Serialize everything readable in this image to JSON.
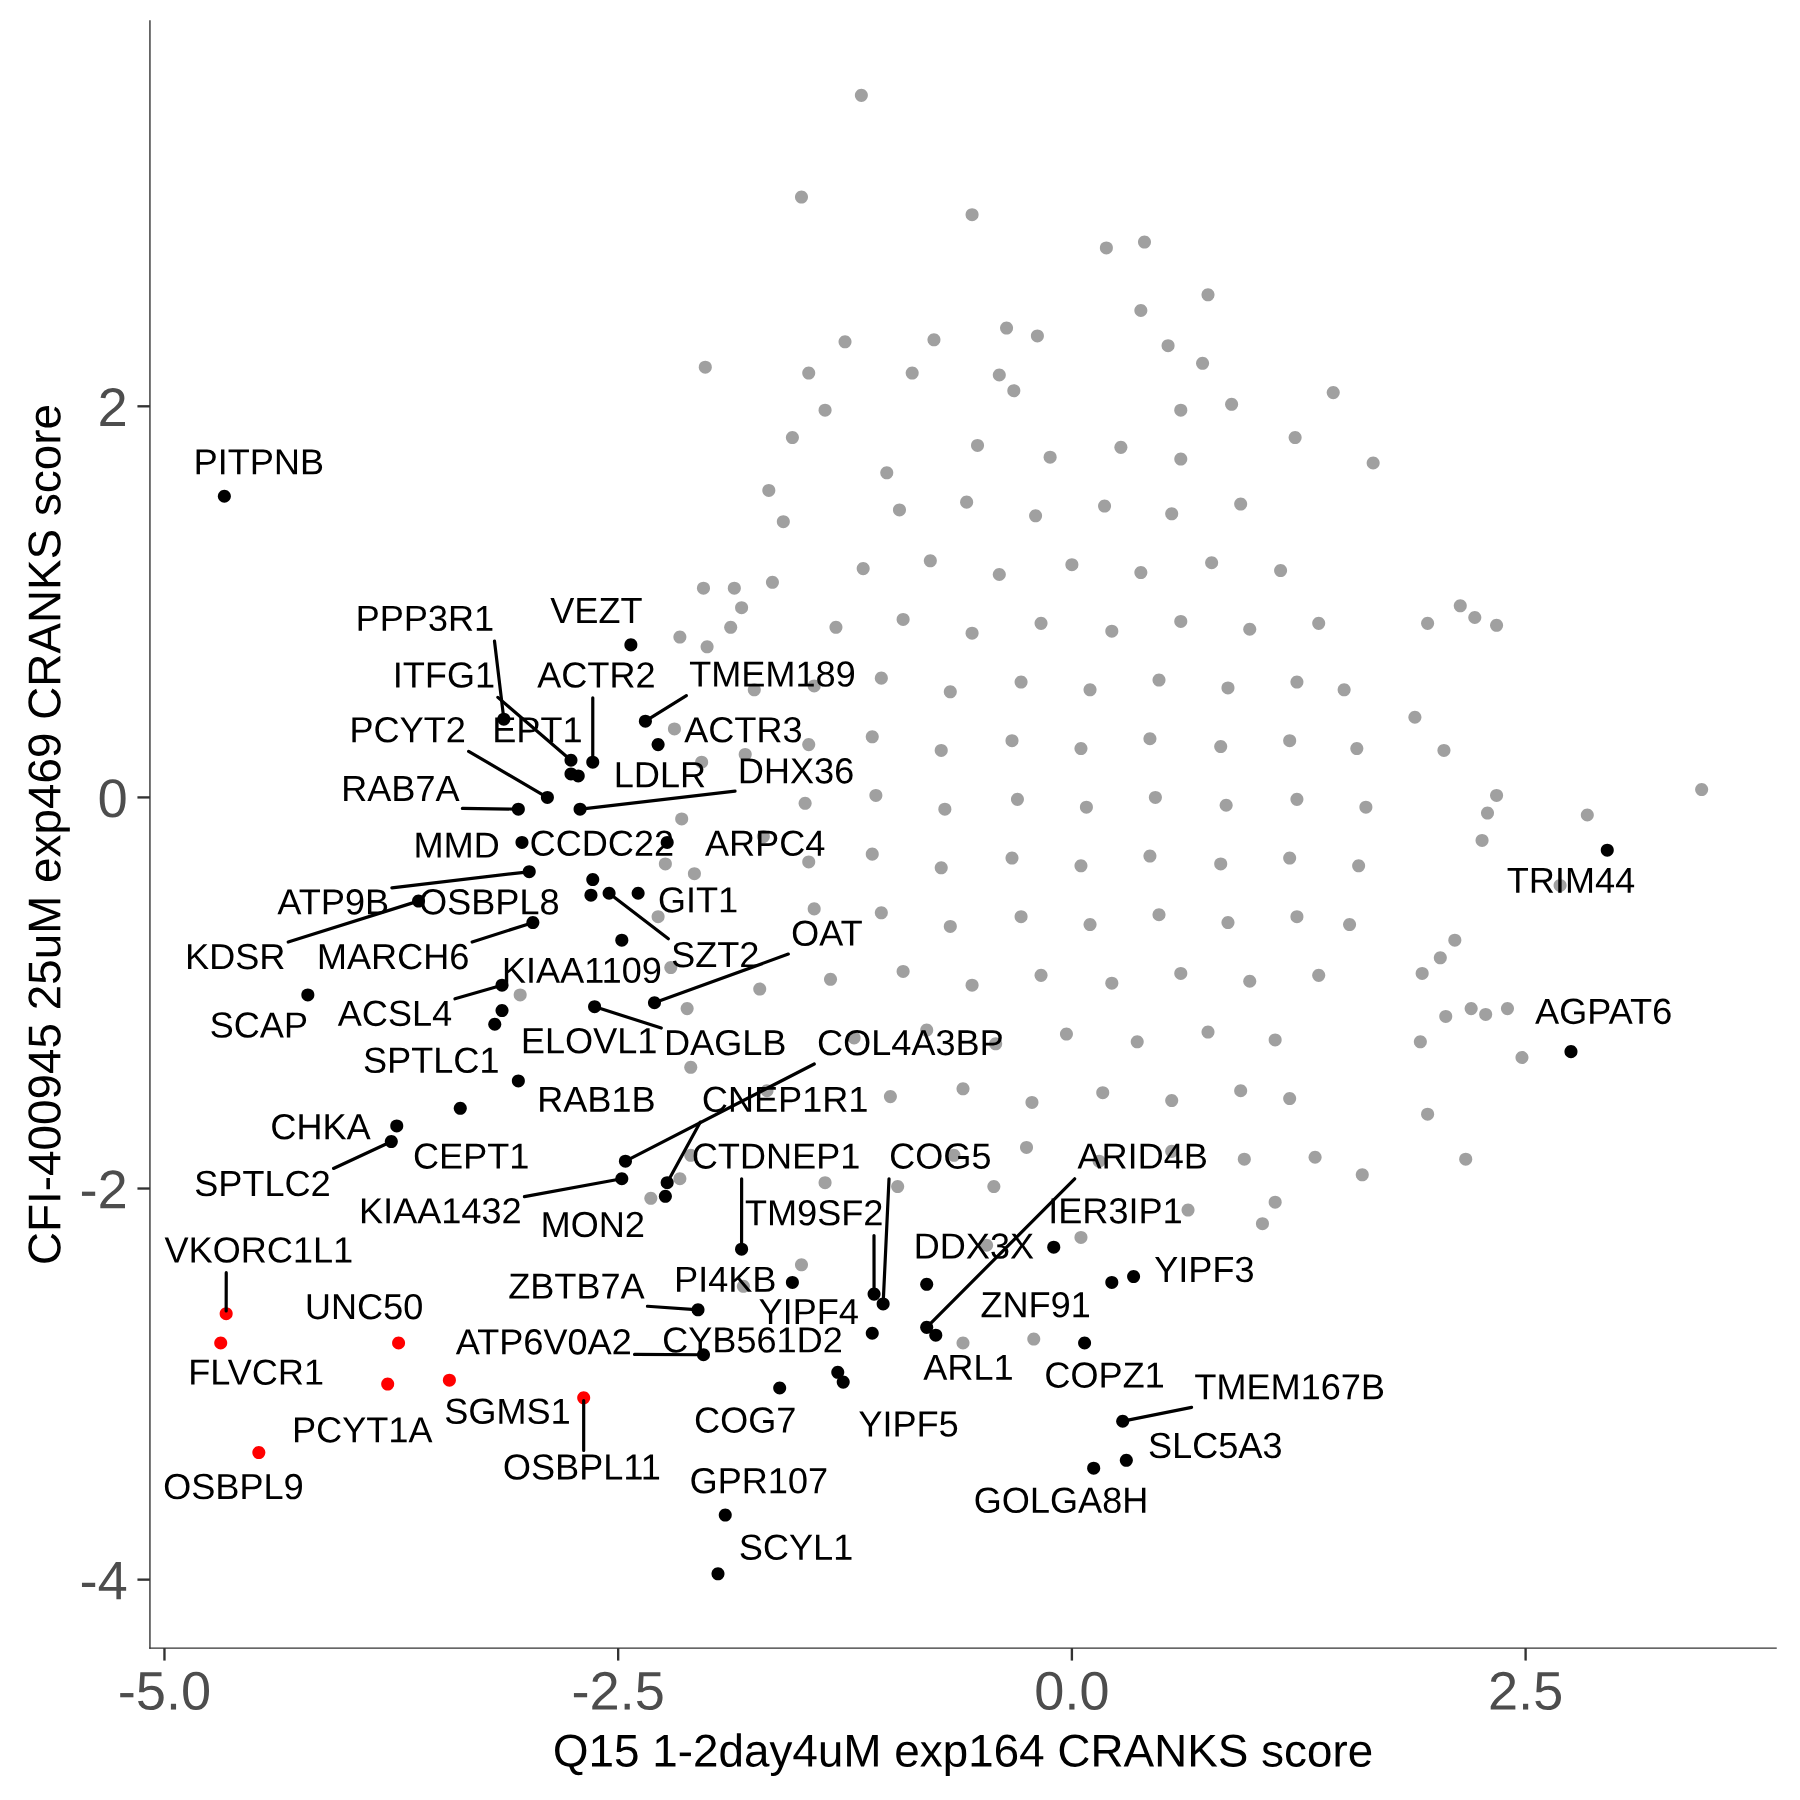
{
  "chart_data": {
    "type": "scatter",
    "marker": "circle",
    "xlabel": "Q15 1-2day4uM exp164 CRANKS score",
    "ylabel": "CFI-400945 25uM exp469 CRANKS score",
    "xlim": [
      -5.08,
      3.88
    ],
    "ylim": [
      -4.35,
      3.97
    ],
    "xticks": [
      {
        "value": -5,
        "label": "-5.0"
      },
      -2.5,
      {
        "value": 0,
        "label": "0.0"
      },
      2.5
    ],
    "yticks": [
      -4,
      -2,
      0,
      2
    ],
    "series": [
      {
        "color": "#a0a0a0",
        "x": [
          -1.16,
          -1.49,
          -0.55,
          0.19,
          0.4,
          0.75,
          0.38,
          -0.36,
          -0.19,
          -1.25,
          -0.76,
          0.53,
          -2.02,
          -1.45,
          -0.88,
          0.72,
          -0.4,
          1.44,
          0.88,
          -1.36,
          -0.32,
          0.6,
          -1.54,
          1.23,
          1.66,
          -1.02,
          -1.67,
          -1.59,
          3.47,
          2.84,
          2.34,
          2.29,
          2.26,
          2.14,
          2.34,
          2.22,
          1.96,
          1.89,
          2.05,
          2.11,
          2.03,
          1.93,
          2.06,
          2.2,
          2.28,
          2.4,
          2.48,
          1.92,
          1.96,
          2.17,
          1.6,
          1.05,
          1.12,
          0.64,
          1.34,
          0.05,
          2.69,
          -0.6,
          -0.21,
          -1.49,
          -1.81,
          -1.36,
          -0.96,
          -0.43,
          -2.1,
          -2.16,
          -2.32,
          -3.04,
          -2.16,
          -2.01,
          -1.88,
          -1.82,
          -2.03,
          -1.86,
          -2.19,
          -2.04,
          -2.15,
          -2.24,
          -2.08,
          -2.28,
          -2.21,
          -2.12,
          -2.1,
          -0.47,
          -1.75,
          -1.7,
          -1.72,
          -1.65,
          -1.68,
          -1.8,
          -0.52,
          -0.12,
          0.27,
          0.6,
          -0.95,
          -0.58,
          -0.2,
          0.18,
          0.55,
          0.93,
          -1.15,
          -0.78,
          -0.4,
          0.0,
          0.38,
          0.77,
          1.15,
          -1.3,
          -0.93,
          -0.55,
          -0.17,
          0.22,
          0.6,
          0.98,
          1.36,
          -1.42,
          -1.05,
          -0.67,
          -0.28,
          0.1,
          0.48,
          0.86,
          1.24,
          1.5,
          -1.45,
          -1.1,
          -0.72,
          -0.33,
          0.05,
          0.43,
          0.82,
          1.2,
          1.57,
          -1.47,
          -1.08,
          -0.7,
          -0.3,
          0.08,
          0.46,
          0.85,
          1.24,
          1.62,
          -1.45,
          -1.1,
          -0.72,
          -0.33,
          0.05,
          0.43,
          0.82,
          1.2,
          1.58,
          -1.42,
          -1.05,
          -0.67,
          -0.28,
          0.1,
          0.48,
          0.86,
          1.24,
          1.53,
          -1.33,
          -0.93,
          -0.55,
          -0.17,
          0.22,
          0.6,
          0.98,
          1.36,
          -1.2,
          -0.8,
          -0.42,
          -0.03,
          0.36,
          0.75,
          1.12,
          -1.0,
          -0.6,
          -0.22,
          0.17,
          0.55,
          0.93,
          1.2,
          -0.65,
          -0.25,
          0.15,
          0.55,
          0.95
        ],
        "values": [
          3.59,
          3.07,
          2.98,
          2.81,
          2.84,
          2.57,
          2.49,
          2.4,
          2.36,
          2.33,
          2.34,
          2.31,
          2.2,
          2.17,
          2.17,
          2.22,
          2.16,
          2.07,
          2.01,
          1.98,
          2.08,
          1.98,
          1.84,
          1.84,
          1.71,
          1.66,
          1.57,
          1.41,
          0.04,
          -0.09,
          0.01,
          -0.08,
          -0.22,
          0.98,
          0.88,
          0.92,
          0.89,
          0.41,
          0.24,
          -0.73,
          -0.82,
          -0.9,
          -1.12,
          -1.08,
          -1.11,
          -1.08,
          -1.33,
          -1.25,
          -1.62,
          -1.85,
          -1.93,
          -2.18,
          -2.07,
          -2.11,
          -1.84,
          -2.25,
          -0.45,
          -2.79,
          -2.77,
          -2.39,
          -2.5,
          -1.97,
          -1.99,
          -1.99,
          -1.83,
          -1.95,
          -2.05,
          -1.01,
          0.82,
          0.77,
          0.87,
          0.97,
          1.07,
          1.07,
          0.35,
          0.18,
          -0.11,
          -0.34,
          -0.39,
          -0.61,
          -0.87,
          -1.08,
          -1.38,
          -2.29,
          0.55,
          -0.2,
          -0.98,
          1.1,
          -1.5,
          0.22,
          1.8,
          1.74,
          1.79,
          1.73,
          1.47,
          1.51,
          1.44,
          1.49,
          1.45,
          1.5,
          1.17,
          1.21,
          1.14,
          1.19,
          1.15,
          1.2,
          1.16,
          0.87,
          0.91,
          0.84,
          0.89,
          0.85,
          0.9,
          0.86,
          0.89,
          0.57,
          0.61,
          0.54,
          0.59,
          0.55,
          0.6,
          0.56,
          0.59,
          0.55,
          0.27,
          0.31,
          0.24,
          0.29,
          0.25,
          0.3,
          0.26,
          0.29,
          0.25,
          -0.03,
          0.01,
          -0.06,
          -0.01,
          -0.05,
          0.0,
          -0.04,
          -0.01,
          -0.05,
          -0.33,
          -0.29,
          -0.36,
          -0.31,
          -0.35,
          -0.3,
          -0.34,
          -0.31,
          -0.35,
          -0.57,
          -0.59,
          -0.66,
          -0.61,
          -0.65,
          -0.6,
          -0.64,
          -0.61,
          -0.65,
          -0.93,
          -0.89,
          -0.96,
          -0.91,
          -0.95,
          -0.9,
          -0.94,
          -0.91,
          -1.23,
          -1.19,
          -1.26,
          -1.21,
          -1.25,
          -1.2,
          -1.24,
          -1.53,
          -1.49,
          -1.56,
          -1.51,
          -1.55,
          -1.5,
          -1.54,
          -1.83,
          -1.79,
          -1.86,
          -1.81,
          -1.85
        ]
      },
      {
        "color": "#000000",
        "x": [
          -4.67,
          -3.13,
          -2.43,
          -2.35,
          -2.28,
          -2.76,
          -2.64,
          -2.76,
          -2.72,
          -2.89,
          -3.05,
          -2.71,
          -3.03,
          -2.23,
          -2.99,
          -3.6,
          -2.97,
          -2.64,
          -2.65,
          -2.55,
          -2.39,
          -2.48,
          -4.21,
          -3.14,
          -3.14,
          -3.18,
          -2.63,
          -2.3,
          -3.05,
          -3.37,
          -3.72,
          -3.75,
          -2.46,
          -2.48,
          -2.23,
          -2.24,
          -1.82,
          -1.54,
          -2.06,
          -2.03,
          -1.1,
          -1.29,
          -1.26,
          -1.61,
          -1.09,
          -1.04,
          -0.8,
          -0.8,
          -0.75,
          -0.1,
          0.22,
          0.34,
          0.07,
          0.28,
          0.3,
          0.12,
          -1.91,
          -1.95,
          2.95,
          2.75
        ],
        "values": [
          1.54,
          0.4,
          0.78,
          0.39,
          0.27,
          0.19,
          0.18,
          0.12,
          0.11,
          0.0,
          -0.06,
          -0.06,
          -0.23,
          -0.23,
          -0.38,
          -0.53,
          -0.64,
          -0.42,
          -0.5,
          -0.49,
          -0.49,
          -0.73,
          -1.01,
          -0.96,
          -1.09,
          -1.16,
          -1.07,
          -1.05,
          -1.45,
          -1.59,
          -1.68,
          -1.76,
          -1.86,
          -1.95,
          -1.97,
          -2.04,
          -2.31,
          -2.48,
          -2.62,
          -2.85,
          -2.74,
          -2.94,
          -2.99,
          -3.02,
          -2.54,
          -2.59,
          -2.49,
          -2.71,
          -2.75,
          -2.3,
          -2.48,
          -2.45,
          -2.79,
          -3.19,
          -3.39,
          -3.43,
          -3.67,
          -3.97,
          -0.27,
          -1.3
        ]
      },
      {
        "color": "#ff0000",
        "x": [
          -4.66,
          -4.69,
          -3.71,
          -3.77,
          -3.43,
          -2.69,
          -4.48
        ],
        "values": [
          -2.64,
          -2.79,
          -2.79,
          -3.0,
          -2.98,
          -3.07,
          -3.35
        ]
      }
    ],
    "annotations": [
      {
        "text": "PITPNB",
        "x": -4.67,
        "y": 1.54
      },
      {
        "text": "PPP3R1",
        "x": -3.13,
        "y": 0.4
      },
      {
        "text": "VEZT",
        "x": -2.43,
        "y": 0.78
      },
      {
        "text": "TMEM189",
        "x": -2.35,
        "y": 0.39
      },
      {
        "text": "ACTR3",
        "x": -2.28,
        "y": 0.27
      },
      {
        "text": "ITFG1",
        "x": -2.76,
        "y": 0.19
      },
      {
        "text": "ACTR2",
        "x": -2.64,
        "y": 0.18
      },
      {
        "text": "EPT1",
        "x": -2.76,
        "y": 0.12
      },
      {
        "text": "LDLR",
        "x": -2.72,
        "y": 0.11
      },
      {
        "text": "PCYT2",
        "x": -2.89,
        "y": 0.0
      },
      {
        "text": "RAB7A",
        "x": -3.05,
        "y": -0.06
      },
      {
        "text": "DHX36",
        "x": -2.71,
        "y": -0.06
      },
      {
        "text": "MMD",
        "x": -3.03,
        "y": -0.23
      },
      {
        "text": "ARPC4",
        "x": -2.23,
        "y": -0.23
      },
      {
        "text": "ATP9B",
        "x": -2.99,
        "y": -0.38
      },
      {
        "text": "KDSR",
        "x": -3.6,
        "y": -0.53
      },
      {
        "text": "MARCH6",
        "x": -2.97,
        "y": -0.64
      },
      {
        "text": "CCDC22",
        "x": -2.64,
        "y": -0.42
      },
      {
        "text": "OSBPL8",
        "x": -2.65,
        "y": -0.5
      },
      {
        "text": "SZT2",
        "x": -2.55,
        "y": -0.49
      },
      {
        "text": "GIT1",
        "x": -2.39,
        "y": -0.49
      },
      {
        "text": "KIAA1109",
        "x": -2.48,
        "y": -0.73
      },
      {
        "text": "SCAP",
        "x": -4.21,
        "y": -1.01
      },
      {
        "text": "ACSL4",
        "x": -3.14,
        "y": -0.96
      },
      {
        "text": "SPTLC1",
        "x": -3.14,
        "y": -1.09
      },
      {
        "text": "ELOVL1",
        "x": -3.18,
        "y": -1.16
      },
      {
        "text": "DAGLB",
        "x": -2.63,
        "y": -1.07
      },
      {
        "text": "OAT",
        "x": -2.3,
        "y": -1.05
      },
      {
        "text": "RAB1B",
        "x": -3.05,
        "y": -1.45
      },
      {
        "text": "CEPT1",
        "x": -3.37,
        "y": -1.59
      },
      {
        "text": "CHKA",
        "x": -3.72,
        "y": -1.68
      },
      {
        "text": "SPTLC2",
        "x": -3.75,
        "y": -1.76
      },
      {
        "text": "COL4A3BP",
        "x": -2.46,
        "y": -1.86
      },
      {
        "text": "KIAA1432",
        "x": -2.48,
        "y": -1.95
      },
      {
        "text": "CNEP1R1",
        "x": -2.23,
        "y": -1.97
      },
      {
        "text": "MON2",
        "x": -2.24,
        "y": -2.04
      },
      {
        "text": "CTDNEP1",
        "x": -1.82,
        "y": -2.31
      },
      {
        "text": "PI4KB",
        "x": -1.54,
        "y": -2.48
      },
      {
        "text": "ZBTB7A",
        "x": -2.06,
        "y": -2.62
      },
      {
        "text": "ATP6V0A2",
        "x": -2.03,
        "y": -2.85
      },
      {
        "text": "YIPF4",
        "x": -1.1,
        "y": -2.74
      },
      {
        "text": "CYB561D2",
        "x": -1.29,
        "y": -2.94
      },
      {
        "text": "YIPF5",
        "x": -1.26,
        "y": -2.99
      },
      {
        "text": "COG7",
        "x": -1.61,
        "y": -3.02
      },
      {
        "text": "TM9SF2",
        "x": -1.09,
        "y": -2.54
      },
      {
        "text": "COG5",
        "x": -1.04,
        "y": -2.59
      },
      {
        "text": "DDX3X",
        "x": -0.8,
        "y": -2.49
      },
      {
        "text": "ARID4B",
        "x": -0.8,
        "y": -2.71
      },
      {
        "text": "ARL1",
        "x": -0.75,
        "y": -2.75
      },
      {
        "text": "IER3IP1",
        "x": -0.1,
        "y": -2.3
      },
      {
        "text": "ZNF91",
        "x": 0.22,
        "y": -2.48
      },
      {
        "text": "YIPF3",
        "x": 0.34,
        "y": -2.45
      },
      {
        "text": "COPZ1",
        "x": 0.07,
        "y": -2.79
      },
      {
        "text": "TMEM167B",
        "x": 0.28,
        "y": -3.19
      },
      {
        "text": "SLC5A3",
        "x": 0.3,
        "y": -3.39
      },
      {
        "text": "GOLGA8H",
        "x": 0.12,
        "y": -3.43
      },
      {
        "text": "GPR107",
        "x": -1.91,
        "y": -3.67
      },
      {
        "text": "SCYL1",
        "x": -1.95,
        "y": -3.97
      },
      {
        "text": "TRIM44",
        "x": 2.95,
        "y": -0.27
      },
      {
        "text": "AGPAT6",
        "x": 2.75,
        "y": -1.3
      },
      {
        "text": "VKORC1L1",
        "x": -4.66,
        "y": -2.64
      },
      {
        "text": "FLVCR1",
        "x": -4.69,
        "y": -2.79
      },
      {
        "text": "UNC50",
        "x": -3.71,
        "y": -2.79
      },
      {
        "text": "PCYT1A",
        "x": -3.77,
        "y": -3.0
      },
      {
        "text": "SGMS1",
        "x": -3.43,
        "y": -2.98
      },
      {
        "text": "OSBPL11",
        "x": -2.69,
        "y": -3.07
      },
      {
        "text": "OSBPL9",
        "x": -4.48,
        "y": -3.35
      }
    ]
  }
}
